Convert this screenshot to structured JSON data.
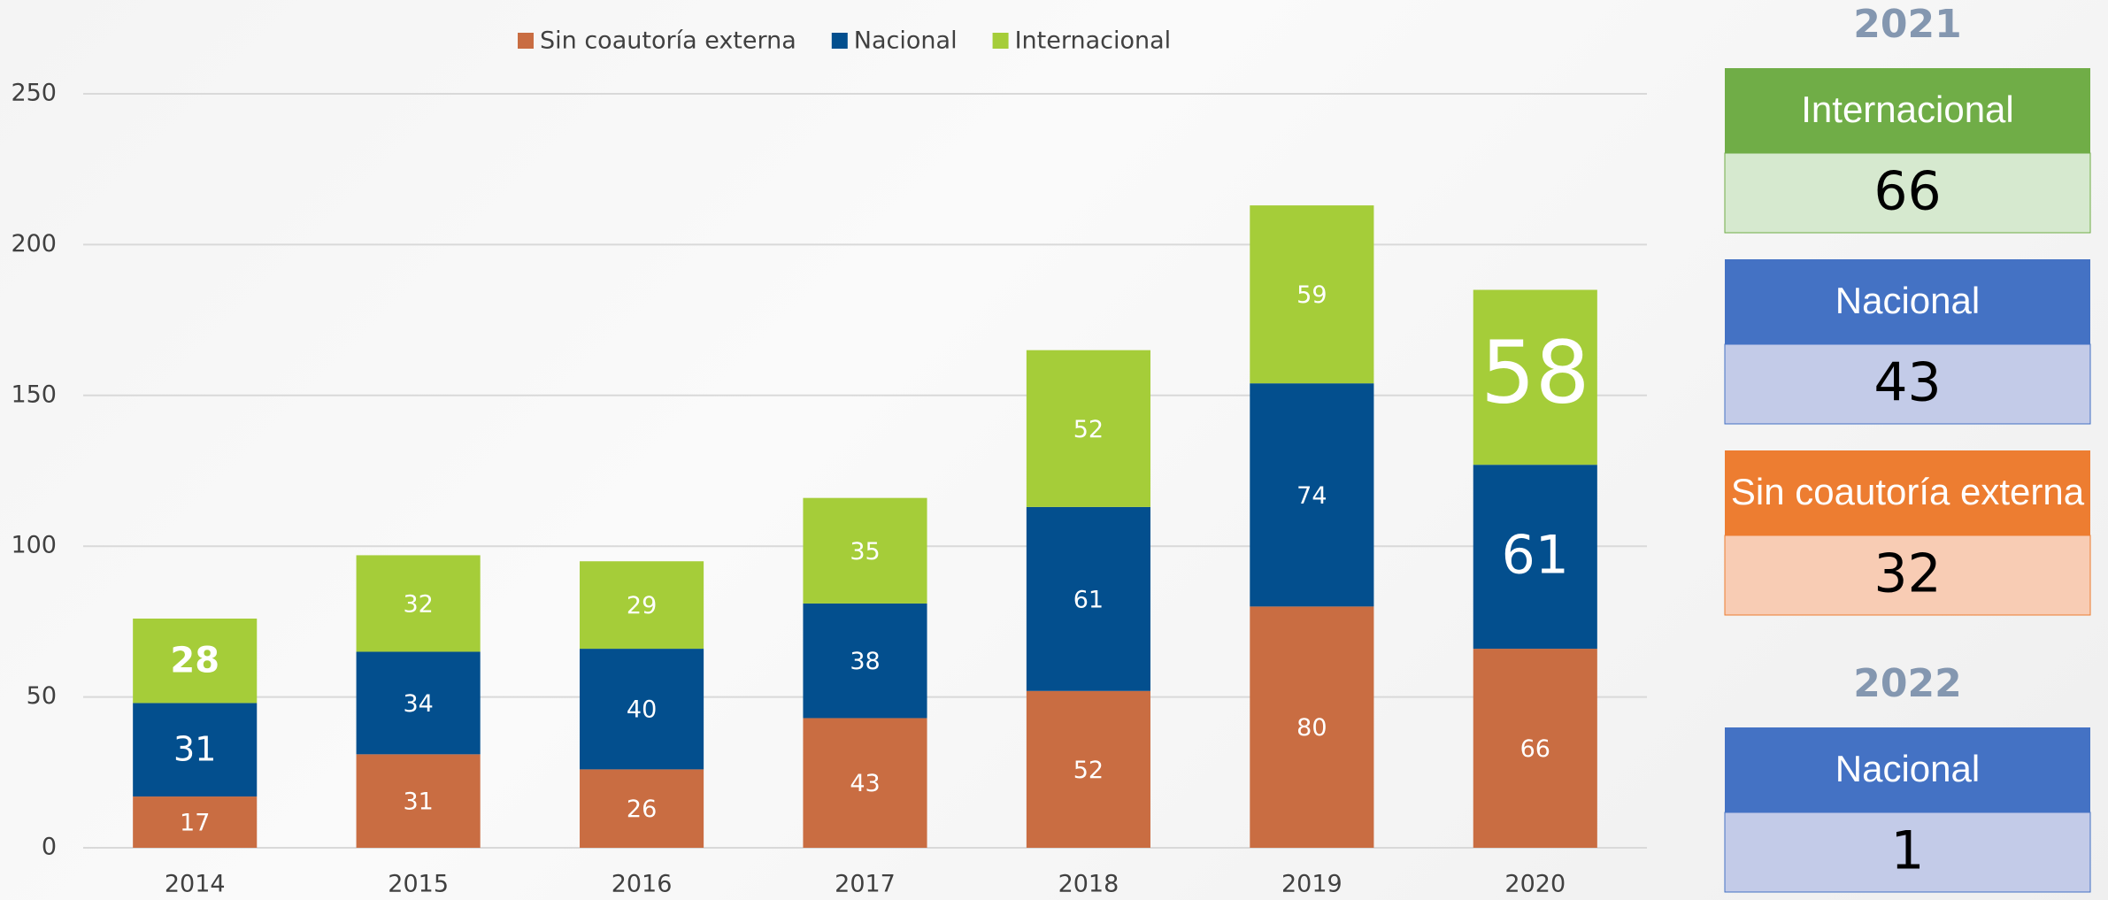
{
  "chart_data": {
    "type": "bar",
    "stacked": true,
    "categories": [
      "2014",
      "2015",
      "2016",
      "2017",
      "2018",
      "2019",
      "2020"
    ],
    "series": [
      {
        "name": "Sin coautoría externa",
        "color": "#c96d42",
        "values": [
          17,
          31,
          26,
          43,
          52,
          80,
          66
        ]
      },
      {
        "name": "Nacional",
        "color": "#034f8e",
        "values": [
          31,
          34,
          40,
          38,
          61,
          74,
          61
        ]
      },
      {
        "name": "Internacional",
        "color": "#a5cd39",
        "values": [
          28,
          32,
          29,
          35,
          52,
          59,
          58
        ]
      }
    ],
    "ylim": [
      0,
      250
    ],
    "yticks": [
      0,
      50,
      100,
      150,
      200,
      250
    ],
    "grid": true,
    "legend": "top"
  },
  "summary": [
    {
      "year": "2021",
      "items": [
        {
          "label": "Internacional",
          "value": 66,
          "color": "#70ad47",
          "bg": "#d6e9cf"
        },
        {
          "label": "Nacional",
          "value": 43,
          "color": "#4472c4",
          "bg": "#c3cbe8"
        },
        {
          "label": "Sin coautoría externa",
          "value": 32,
          "color": "#ed7d31",
          "bg": "#f8ccb4"
        }
      ]
    },
    {
      "year": "2022",
      "items": [
        {
          "label": "Nacional",
          "value": 1,
          "color": "#4472c4",
          "bg": "#c3cbe8"
        }
      ]
    }
  ]
}
